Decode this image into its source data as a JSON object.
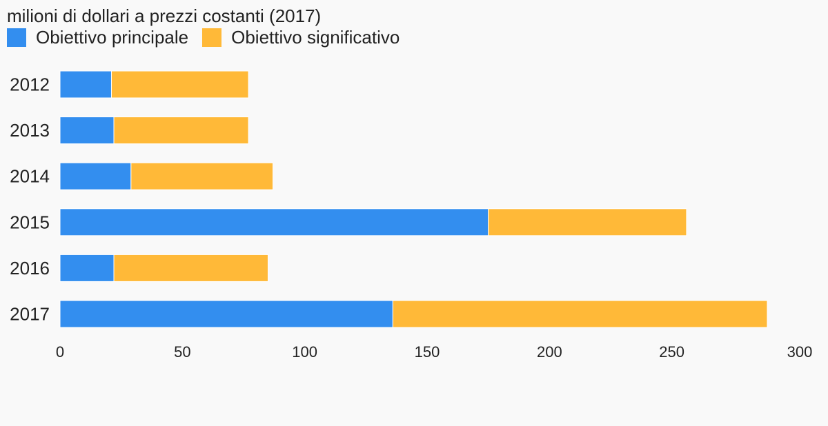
{
  "chart_data": {
    "type": "bar",
    "orientation": "horizontal",
    "stacked": true,
    "title": "milioni di dollari a prezzi costanti (2017)",
    "categories": [
      "2012",
      "2013",
      "2014",
      "2015",
      "2016",
      "2017"
    ],
    "series": [
      {
        "name": "Obiettivo principale",
        "color": "#338eef",
        "values": [
          21,
          22,
          29,
          175,
          22,
          136
        ]
      },
      {
        "name": "Obiettivo significativo",
        "color": "#ffb938",
        "values": [
          56,
          55,
          58,
          81,
          63,
          153
        ]
      }
    ],
    "xlim": [
      0,
      300
    ],
    "xticks": [
      "0",
      "50",
      "100",
      "150",
      "200",
      "250",
      "300"
    ],
    "xlabel": "",
    "ylabel": "",
    "grid": false,
    "legend_position": "top-left"
  }
}
